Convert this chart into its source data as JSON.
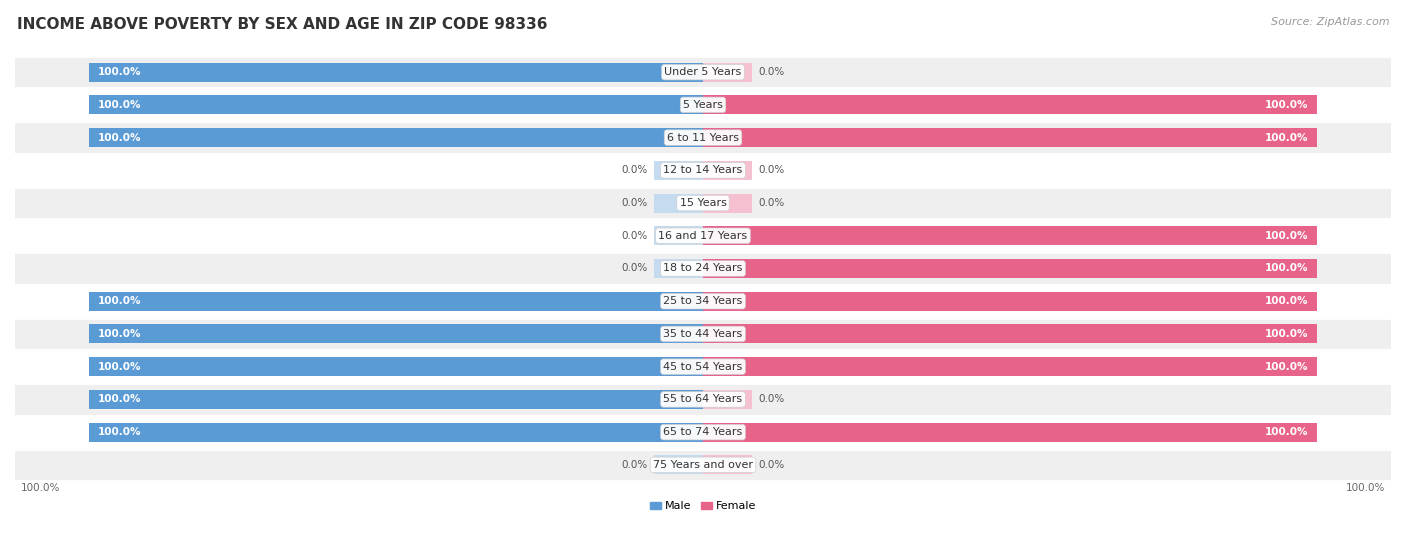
{
  "title": "INCOME ABOVE POVERTY BY SEX AND AGE IN ZIP CODE 98336",
  "source": "Source: ZipAtlas.com",
  "categories": [
    "Under 5 Years",
    "5 Years",
    "6 to 11 Years",
    "12 to 14 Years",
    "15 Years",
    "16 and 17 Years",
    "18 to 24 Years",
    "25 to 34 Years",
    "35 to 44 Years",
    "45 to 54 Years",
    "55 to 64 Years",
    "65 to 74 Years",
    "75 Years and over"
  ],
  "male": [
    100.0,
    100.0,
    100.0,
    0.0,
    0.0,
    0.0,
    0.0,
    100.0,
    100.0,
    100.0,
    100.0,
    100.0,
    0.0
  ],
  "female": [
    0.0,
    100.0,
    100.0,
    0.0,
    0.0,
    100.0,
    100.0,
    100.0,
    100.0,
    100.0,
    0.0,
    100.0,
    0.0
  ],
  "male_color": "#5b9bd5",
  "female_color": "#e8638a",
  "male_label": "Male",
  "female_label": "Female",
  "male_bg_color": "#c5dcf0",
  "female_bg_color": "#f5c0d0",
  "row_alt_color": "#efefef",
  "row_base_color": "#ffffff",
  "title_fontsize": 11,
  "source_fontsize": 8,
  "cat_fontsize": 8,
  "val_fontsize": 7.5,
  "legend_fontsize": 8,
  "axis_tick_fontsize": 7.5,
  "max_val": 100.0,
  "stub_size": 8.0,
  "bar_height": 0.58
}
